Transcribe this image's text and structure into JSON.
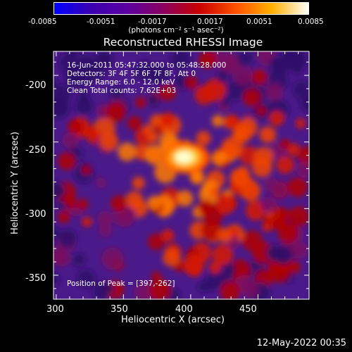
{
  "colorbar": {
    "ticks": [
      "-0.0085",
      "-0.0051",
      "-0.0017",
      "0.0017",
      "0.0051",
      "0.0085"
    ],
    "units_label": "(photons cm⁻² s⁻¹ asec⁻²)",
    "range": [
      -0.0085,
      0.0085
    ],
    "colors": [
      "#0000ff",
      "#3a00b0",
      "#5a00a0",
      "#8a0060",
      "#c80000",
      "#ff5000",
      "#ffb000",
      "#ffffff"
    ]
  },
  "chart_data": {
    "type": "heatmap",
    "title": "Reconstructed RHESSI Image",
    "xlabel": "Heliocentric X (arcsec)",
    "ylabel": "Heliocentric Y (arcsec)",
    "xlim": [
      298,
      488
    ],
    "ylim": [
      -368,
      -182
    ],
    "xticks": [
      300,
      350,
      400,
      450
    ],
    "yticks": [
      -200,
      -250,
      -300,
      -350
    ],
    "peak": [
      397,
      -262
    ],
    "annotations": [
      "16-Jun-2011 05:47:32.000 to 05:48:28.000",
      "Detectors: 3F 4F 5F 6F 7F 8F, Att 0",
      "Energy Range: 6.0 - 12.0 keV",
      "Clean     Total counts: 7.62E+03"
    ],
    "peak_label": "Position of Peak = [397,-262]"
  },
  "footer": "12-May-2022 00:35"
}
